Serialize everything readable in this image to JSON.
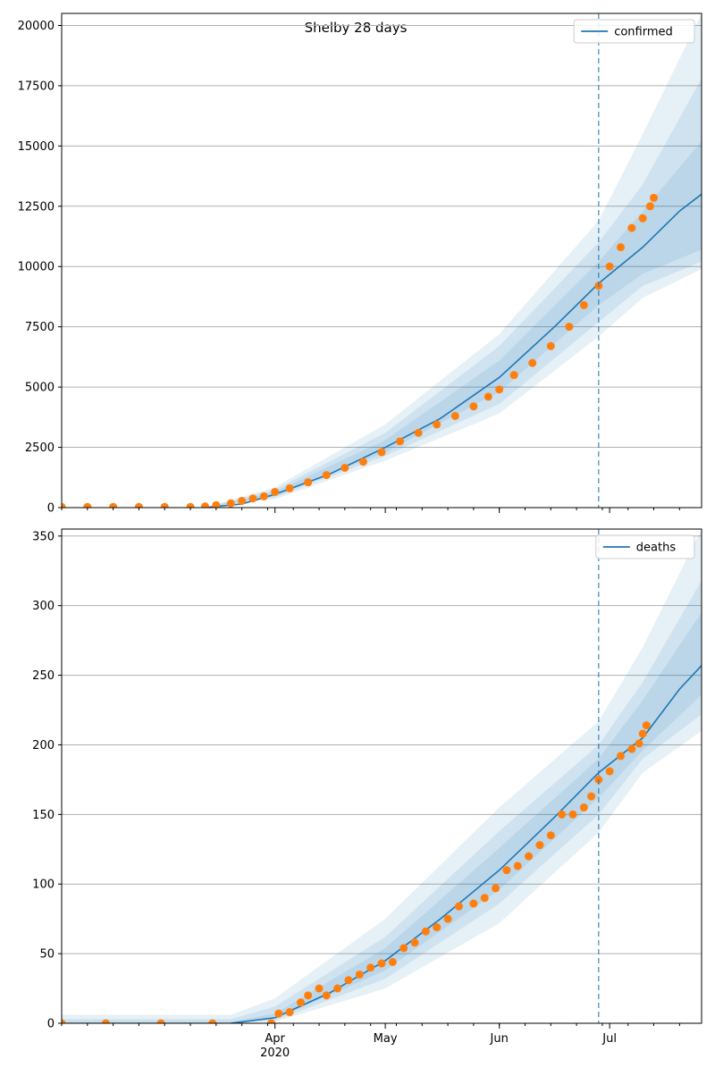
{
  "figure_title": "Shelby 28 days",
  "colors": {
    "line": "#1f77b4",
    "points": "#ff7f0e",
    "band": "#1f77b4",
    "grid": "#b0b0b0",
    "vline": "#1f77b4"
  },
  "chart_data": [
    {
      "type": "line",
      "legend": "confirmed",
      "legend_position": "top-right",
      "grid": "y-major",
      "x_axis": {
        "type": "date",
        "range": [
          "2020-02-03",
          "2020-07-26"
        ],
        "ticks": [
          {
            "date": "2020-04-01",
            "label": "Apr",
            "sublabel": "2020"
          },
          {
            "date": "2020-05-01",
            "label": "May",
            "sublabel": ""
          },
          {
            "date": "2020-06-01",
            "label": "Jun",
            "sublabel": ""
          },
          {
            "date": "2020-07-01",
            "label": "Jul",
            "sublabel": ""
          }
        ],
        "tick_labels_visible": false
      },
      "ylim": [
        0,
        20500
      ],
      "y_ticks": [
        0,
        2500,
        5000,
        7500,
        10000,
        12500,
        15000,
        17500,
        20000
      ],
      "forecast_start": "2020-06-28",
      "model_line": {
        "dates": [
          "2020-03-13",
          "2020-03-23",
          "2020-04-01",
          "2020-04-16",
          "2020-05-01",
          "2020-05-16",
          "2020-06-01",
          "2020-06-16",
          "2020-06-28",
          "2020-07-10",
          "2020-07-20",
          "2020-07-26"
        ],
        "values": [
          0,
          150,
          550,
          1400,
          2500,
          3700,
          5400,
          7500,
          9300,
          10800,
          12300,
          13000
        ]
      },
      "bands": [
        {
          "dates": [
            "2020-03-13",
            "2020-04-01",
            "2020-05-01",
            "2020-06-01",
            "2020-06-28",
            "2020-07-10",
            "2020-07-26"
          ],
          "lower": [
            0,
            350,
            1950,
            3900,
            7100,
            8700,
            9900
          ],
          "upper": [
            0,
            850,
            3450,
            7200,
            11900,
            15500,
            20500
          ]
        },
        {
          "dates": [
            "2020-03-13",
            "2020-04-01",
            "2020-05-01",
            "2020-06-01",
            "2020-06-28",
            "2020-07-10",
            "2020-07-26"
          ],
          "lower": [
            0,
            420,
            2150,
            4300,
            7700,
            9200,
            10200
          ],
          "upper": [
            0,
            750,
            3100,
            6700,
            11000,
            13400,
            17800
          ]
        },
        {
          "dates": [
            "2020-03-13",
            "2020-04-01",
            "2020-05-01",
            "2020-06-01",
            "2020-06-28",
            "2020-07-10",
            "2020-07-26"
          ],
          "lower": [
            0,
            480,
            2300,
            4800,
            8400,
            9700,
            10700
          ],
          "upper": [
            0,
            650,
            2800,
            6100,
            10200,
            12300,
            15200
          ]
        }
      ],
      "observed": {
        "dates": [
          "2020-02-03",
          "2020-02-10",
          "2020-02-17",
          "2020-02-24",
          "2020-03-02",
          "2020-03-09",
          "2020-03-13",
          "2020-03-16",
          "2020-03-20",
          "2020-03-23",
          "2020-03-26",
          "2020-03-29",
          "2020-04-01",
          "2020-04-05",
          "2020-04-10",
          "2020-04-15",
          "2020-04-20",
          "2020-04-25",
          "2020-04-30",
          "2020-05-05",
          "2020-05-10",
          "2020-05-15",
          "2020-05-20",
          "2020-05-25",
          "2020-05-29",
          "2020-06-01",
          "2020-06-05",
          "2020-06-10",
          "2020-06-15",
          "2020-06-20",
          "2020-06-24",
          "2020-06-28",
          "2020-07-01",
          "2020-07-04",
          "2020-07-07",
          "2020-07-10",
          "2020-07-12",
          "2020-07-13"
        ],
        "values": [
          30,
          30,
          30,
          30,
          30,
          30,
          50,
          100,
          180,
          280,
          380,
          470,
          650,
          800,
          1050,
          1350,
          1650,
          1900,
          2300,
          2750,
          3100,
          3450,
          3800,
          4200,
          4600,
          4900,
          5500,
          6000,
          6700,
          7500,
          8400,
          9200,
          10000,
          10800,
          11600,
          12000,
          12500,
          12850
        ]
      }
    },
    {
      "type": "line",
      "legend": "deaths",
      "legend_position": "top-right",
      "grid": "y-major",
      "x_axis": {
        "type": "date",
        "range": [
          "2020-02-03",
          "2020-07-26"
        ],
        "ticks": [
          {
            "date": "2020-04-01",
            "label": "Apr",
            "sublabel": "2020"
          },
          {
            "date": "2020-05-01",
            "label": "May",
            "sublabel": ""
          },
          {
            "date": "2020-06-01",
            "label": "Jun",
            "sublabel": ""
          },
          {
            "date": "2020-07-01",
            "label": "Jul",
            "sublabel": ""
          }
        ],
        "tick_labels_visible": true
      },
      "ylim": [
        0,
        355
      ],
      "y_ticks": [
        0,
        50,
        100,
        150,
        200,
        250,
        300,
        350
      ],
      "forecast_start": "2020-06-28",
      "model_line": {
        "dates": [
          "2020-03-20",
          "2020-04-01",
          "2020-04-16",
          "2020-05-01",
          "2020-05-16",
          "2020-06-01",
          "2020-06-16",
          "2020-06-28",
          "2020-07-10",
          "2020-07-20",
          "2020-07-26"
        ],
        "values": [
          0,
          4,
          22,
          45,
          75,
          110,
          148,
          180,
          205,
          240,
          257
        ]
      },
      "bands": [
        {
          "dates": [
            "2020-02-03",
            "2020-03-20",
            "2020-04-01",
            "2020-05-01",
            "2020-06-01",
            "2020-06-28",
            "2020-07-10",
            "2020-07-26"
          ],
          "lower": [
            0,
            0,
            1,
            25,
            72,
            137,
            180,
            210
          ],
          "upper": [
            6,
            6,
            18,
            75,
            155,
            217,
            270,
            355
          ]
        },
        {
          "dates": [
            "2020-02-03",
            "2020-03-20",
            "2020-04-01",
            "2020-05-01",
            "2020-06-01",
            "2020-06-28",
            "2020-07-10",
            "2020-07-26"
          ],
          "lower": [
            0,
            0,
            2,
            32,
            86,
            150,
            190,
            222
          ],
          "upper": [
            3,
            3,
            12,
            62,
            138,
            200,
            245,
            318
          ]
        },
        {
          "dates": [
            "2020-02-03",
            "2020-03-20",
            "2020-04-01",
            "2020-05-01",
            "2020-06-01",
            "2020-06-28",
            "2020-07-10",
            "2020-07-26"
          ],
          "lower": [
            0,
            0,
            3,
            38,
            96,
            162,
            196,
            236
          ],
          "upper": [
            1,
            1,
            7,
            54,
            126,
            190,
            232,
            295
          ]
        }
      ],
      "observed": {
        "dates": [
          "2020-02-03",
          "2020-02-15",
          "2020-03-01",
          "2020-03-15",
          "2020-03-31",
          "2020-04-02",
          "2020-04-05",
          "2020-04-08",
          "2020-04-10",
          "2020-04-13",
          "2020-04-15",
          "2020-04-18",
          "2020-04-21",
          "2020-04-24",
          "2020-04-27",
          "2020-04-30",
          "2020-05-03",
          "2020-05-06",
          "2020-05-09",
          "2020-05-12",
          "2020-05-15",
          "2020-05-18",
          "2020-05-21",
          "2020-05-25",
          "2020-05-28",
          "2020-05-31",
          "2020-06-03",
          "2020-06-06",
          "2020-06-09",
          "2020-06-12",
          "2020-06-15",
          "2020-06-18",
          "2020-06-21",
          "2020-06-24",
          "2020-06-26",
          "2020-06-28",
          "2020-07-01",
          "2020-07-04",
          "2020-07-07",
          "2020-07-09",
          "2020-07-10",
          "2020-07-11"
        ],
        "values": [
          0,
          0,
          0,
          0,
          0,
          7,
          8,
          15,
          20,
          25,
          20,
          25,
          31,
          35,
          40,
          43,
          44,
          54,
          58,
          66,
          69,
          75,
          84,
          86,
          90,
          97,
          110,
          113,
          120,
          128,
          135,
          150,
          150,
          155,
          163,
          175,
          181,
          192,
          197,
          201,
          208,
          214
        ]
      }
    }
  ]
}
